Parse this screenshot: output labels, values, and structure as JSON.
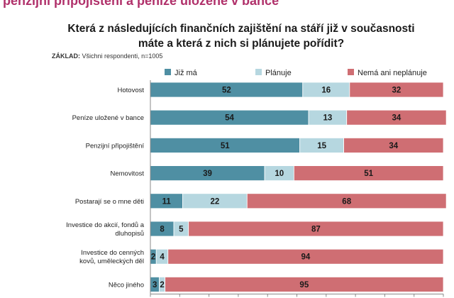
{
  "page": {
    "heading": "penzijní připojištění a peníze uložené v bance"
  },
  "chart_data": {
    "type": "bar",
    "orientation": "horizontal",
    "stacked": "percent",
    "title": "Která z následujících finančních zajištění na stáří již v současnosti máte a která z nich si plánujete pořídit?",
    "base_label": "ZÁKLAD:",
    "base_text": "Všichni respondenti, n=1005",
    "categories": [
      "Hotovost",
      "Peníze uložené v bance",
      "Penzijní připojištění",
      "Nemovitost",
      "Postarají se o mne děti",
      "Investice do akcií, fondů a dluhopisů",
      "Investice do cenných kovů, uměleckých děl",
      "Něco jiného"
    ],
    "series": [
      {
        "name": "Již má",
        "color": "#4f8fa3",
        "values": [
          52,
          54,
          51,
          39,
          11,
          8,
          2,
          3
        ]
      },
      {
        "name": "Plánuje",
        "color": "#b6d7e0",
        "values": [
          16,
          13,
          15,
          10,
          22,
          5,
          4,
          2
        ]
      },
      {
        "name": "Nemá ani neplánuje",
        "color": "#cf6e73",
        "values": [
          32,
          34,
          34,
          51,
          68,
          87,
          94,
          95
        ]
      }
    ],
    "xlim": [
      0,
      100
    ],
    "legend_position": "top",
    "grid": false
  }
}
